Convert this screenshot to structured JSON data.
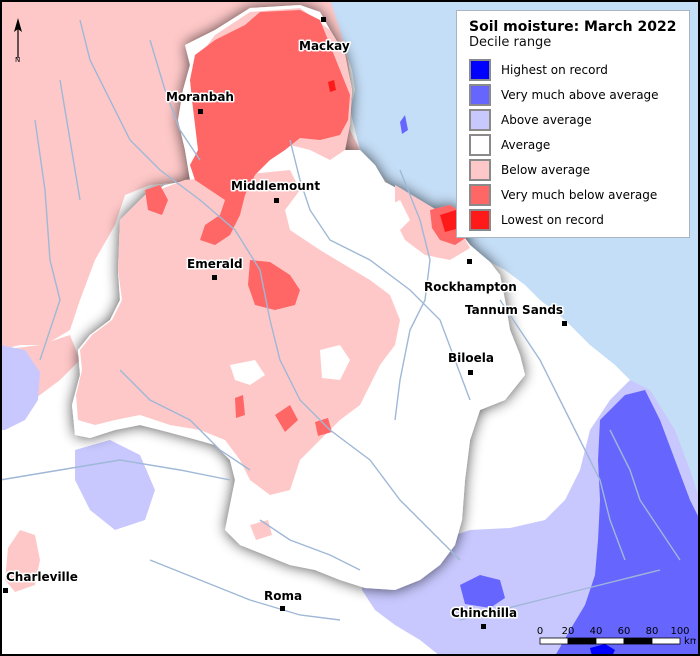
{
  "legend": {
    "title": "Soil moisture: March 2022",
    "subtitle": "Decile range",
    "items": [
      {
        "label": "Highest on record",
        "color": "#0000ff"
      },
      {
        "label": "Very much above average",
        "color": "#6666ff"
      },
      {
        "label": "Above average",
        "color": "#c8c8ff"
      },
      {
        "label": "Average",
        "color": "#ffffff"
      },
      {
        "label": "Below average",
        "color": "#ffc8c8"
      },
      {
        "label": "Very much below average",
        "color": "#ff6666"
      },
      {
        "label": "Lowest on record",
        "color": "#ff1a1a"
      }
    ]
  },
  "towns": {
    "mackay": "Mackay",
    "moranbah": "Moranbah",
    "middlemount": "Middlemount",
    "emerald": "Emerald",
    "rockhampton": "Rockhampton",
    "tannum_sands": "Tannum Sands",
    "biloela": "Biloela",
    "charleville": "Charleville",
    "roma": "Roma",
    "chinchilla": "Chinchilla"
  },
  "north_arrow": {
    "label": "N"
  },
  "scale_bar": {
    "ticks": [
      "0",
      "20",
      "40",
      "60",
      "80",
      "100"
    ],
    "unit": "km"
  },
  "colors": {
    "ocean": "#c5def7",
    "river": "#9fb8d6",
    "frame": "#000000"
  }
}
